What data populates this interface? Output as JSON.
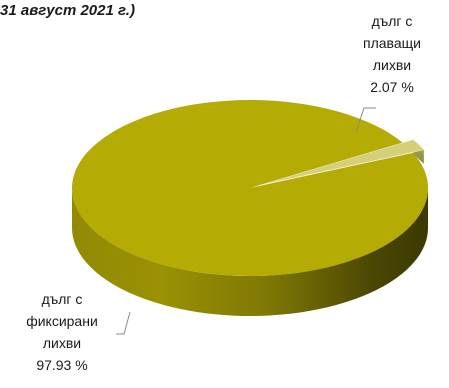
{
  "chart_data": {
    "type": "pie",
    "title": "31 август 2021 г.)",
    "slices": [
      {
        "label_lines": [
          "дълг с",
          "плаващи",
          "лихви"
        ],
        "value": 2.07,
        "value_label": "2.07 %",
        "color": "#d4cf7a"
      },
      {
        "label_lines": [
          "дълг с",
          "фиксирани",
          "лихви"
        ],
        "value": 97.93,
        "value_label": "97.93 %",
        "color": "#b4ab04"
      }
    ]
  }
}
